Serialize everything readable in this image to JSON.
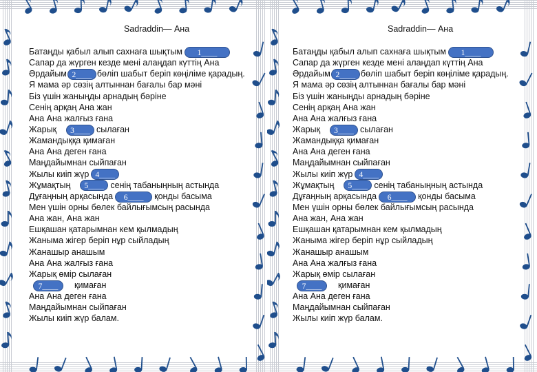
{
  "colors": {
    "note": "#1f4e8c",
    "blank_fill": "#4472c4",
    "staff": "#c9ccd3"
  },
  "worksheet": {
    "title": "Sadraddin— Ана",
    "lines": [
      {
        "before": "Батаңды қабыл алып сахнаға шықтым",
        "blank": "1____",
        "after": ""
      },
      {
        "before": "Сапар да жүрген кезде мені алаңдап күттің Ана",
        "blank": "",
        "after": ""
      },
      {
        "before": "Әрдайым",
        "blank": "2____",
        "after": "бөліп шабыт беріп көңіліме қарадың."
      },
      {
        "before": "Я мама әр сөзің алтыннан бағалы бар мәні",
        "blank": "",
        "after": ""
      },
      {
        "before": "Біз үшін жаныңды арнадың бәріне",
        "blank": "",
        "after": ""
      },
      {
        "before": "Сенің арқаң Ана жан",
        "blank": "",
        "after": ""
      },
      {
        "before": "Ана Ана жалғыз ғана",
        "blank": "",
        "after": ""
      },
      {
        "before": "Жарық",
        "blank": "3____",
        "after": "сылаған"
      },
      {
        "before": "Жамандыққа қимаған",
        "blank": "",
        "after": ""
      },
      {
        "before": "Ана Ана деген ғана",
        "blank": "",
        "after": ""
      },
      {
        "before": "Маңдайымнан сыйпаған",
        "blank": "",
        "after": ""
      },
      {
        "before": "Жылы киіп жүр",
        "blank": "4____",
        "after": ""
      },
      {
        "before": "Жұмақтың",
        "blank": "5____",
        "after": "сенің табаныңның астында"
      },
      {
        "before": "Дұғаңның арқасында",
        "blank": "6____",
        "after": "қонды басыма"
      },
      {
        "before": "Мен үшін орны бөлек байлығымсың расында",
        "blank": "",
        "after": ""
      },
      {
        "before": "Ана жан, Ана жан",
        "blank": "",
        "after": ""
      },
      {
        "before": "Ешқашан қатарымнан кем қылмадың",
        "blank": "",
        "after": ""
      },
      {
        "before": "Жаныма жігер беріп нұр сыйладың",
        "blank": "",
        "after": ""
      },
      {
        "before": "Жанашыр анашым",
        "blank": "",
        "after": ""
      },
      {
        "before": "Ана Ана жалғыз ғана",
        "blank": "",
        "after": ""
      },
      {
        "before": "Жарық өмір сылаған",
        "blank": "",
        "after": ""
      },
      {
        "before": "",
        "blank": "7____",
        "after": "қимаған"
      },
      {
        "before": "Ана Ана деген ғана",
        "blank": "",
        "after": ""
      },
      {
        "before": "Маңдайымнан сыйпаған",
        "blank": "",
        "after": ""
      },
      {
        "before": "Жылы киіп жүр балам.",
        "blank": "",
        "after": ""
      }
    ]
  }
}
